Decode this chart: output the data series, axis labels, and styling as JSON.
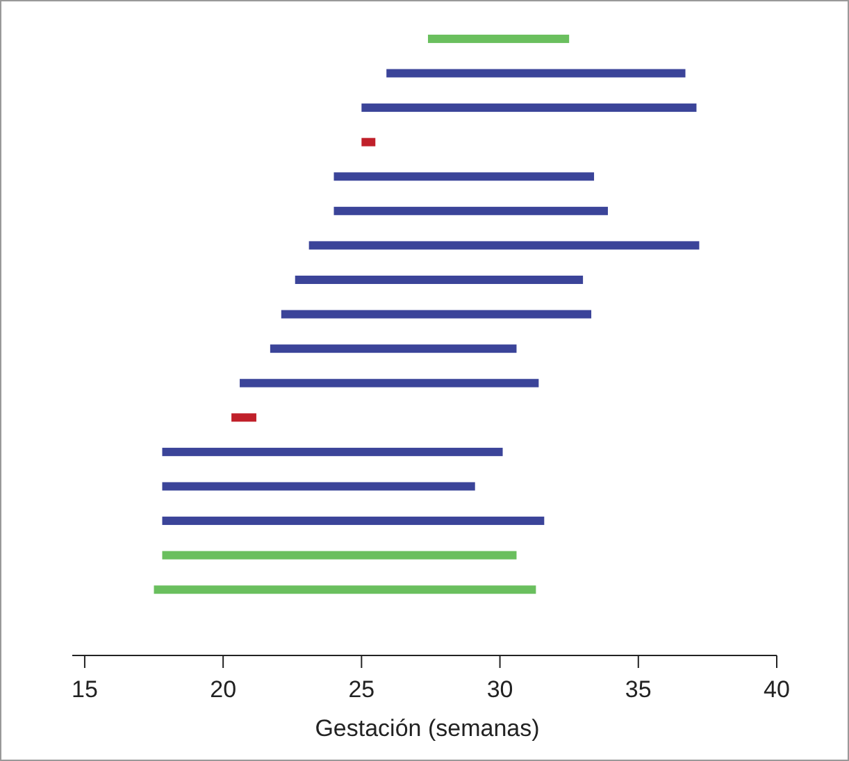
{
  "chart_data": {
    "type": "bar",
    "orientation": "horizontal",
    "xlabel": "Gestación (semanas)",
    "categories": [
      null,
      null,
      null,
      null,
      null,
      null,
      null,
      null,
      null,
      null,
      null,
      null,
      null,
      null,
      null,
      null,
      null
    ],
    "base": [
      27.4,
      25.9,
      25.0,
      25.0,
      24.0,
      24.0,
      23.1,
      22.6,
      22.1,
      21.7,
      20.6,
      20.3,
      17.8,
      17.8,
      17.8,
      17.8,
      17.5
    ],
    "values": [
      5.1,
      10.8,
      12.1,
      0.5,
      9.4,
      9.9,
      14.1,
      10.4,
      11.2,
      8.9,
      10.8,
      0.9,
      12.3,
      11.3,
      13.8,
      12.8,
      13.8
    ],
    "colors": [
      "#6abf5e",
      "#3b4499",
      "#3b4499",
      "#c0202a",
      "#3b4499",
      "#3b4499",
      "#3b4499",
      "#3b4499",
      "#3b4499",
      "#3b4499",
      "#3b4499",
      "#c0202a",
      "#3b4499",
      "#3b4499",
      "#3b4499",
      "#6abf5e",
      "#6abf5e"
    ],
    "xlim": [
      14.55,
      40
    ],
    "xticks": [
      15,
      20,
      25,
      30,
      35,
      40
    ],
    "grid": false
  }
}
